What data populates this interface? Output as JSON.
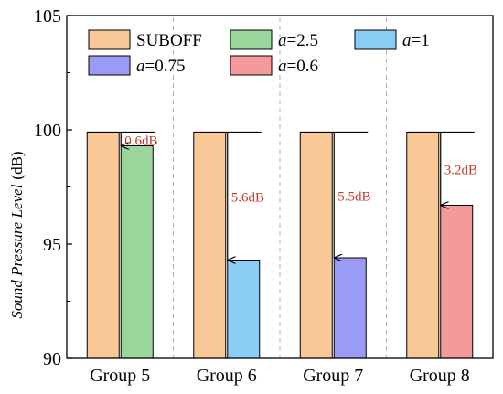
{
  "chart_data": {
    "type": "bar",
    "categories": [
      "Group 5",
      "Group 6",
      "Group 7",
      "Group 8"
    ],
    "ylabel_main": "Sound Pressure Level",
    "ylabel_unit": "(dB)",
    "ylim": [
      90,
      105
    ],
    "yticks": [
      90,
      95,
      100,
      105
    ],
    "baseline_name": "SUBOFF",
    "baseline_values": [
      99.9,
      99.9,
      99.9,
      99.9
    ],
    "baseline_color": "#f9c897",
    "legend": [
      {
        "var": "",
        "rest": "SUBOFF",
        "color": "#f9c897"
      },
      {
        "var": "a",
        "rest": "=2.5",
        "color": "#9ad59c"
      },
      {
        "var": "a",
        "rest": "=1",
        "color": "#87cdf4"
      },
      {
        "var": "a",
        "rest": "=0.75",
        "color": "#9a9bf6"
      },
      {
        "var": "a",
        "rest": "=0.6",
        "color": "#f59a9a"
      }
    ],
    "series": [
      {
        "name": "a=2.5",
        "color": "#9ad59c",
        "category": "Group 5",
        "value": 99.3,
        "annotation": "0.6dB"
      },
      {
        "name": "a=1",
        "color": "#87cdf4",
        "category": "Group 6",
        "value": 94.3,
        "annotation": "5.6dB"
      },
      {
        "name": "a=0.75",
        "color": "#9a9bf6",
        "category": "Group 7",
        "value": 94.4,
        "annotation": "5.5dB"
      },
      {
        "name": "a=0.6",
        "color": "#f59a9a",
        "category": "Group 8",
        "value": 96.7,
        "annotation": "3.2dB"
      }
    ],
    "annotation_color": "#c0392b",
    "grid": "vertical dashed separators between groups",
    "legend_placement": "top"
  }
}
